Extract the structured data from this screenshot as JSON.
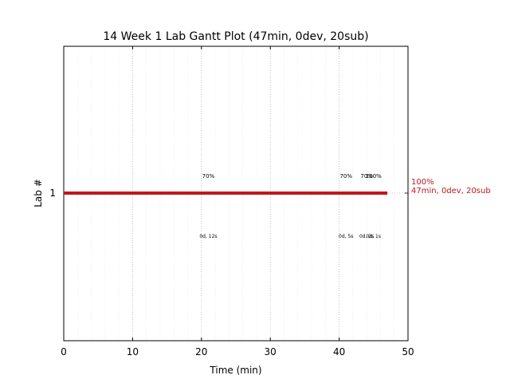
{
  "chart_data": {
    "type": "gantt",
    "title": "14 Week 1 Lab Gantt Plot (47min, 0dev, 20sub)",
    "xlabel": "Time (min)",
    "ylabel": "Lab #",
    "xlim": [
      0,
      50
    ],
    "x_ticks": [
      0,
      10,
      20,
      30,
      40,
      50
    ],
    "y_ticks": [
      1
    ],
    "grid": {
      "major_x": true,
      "minor_x": true
    },
    "bar_color": "#c0171c",
    "series": [
      {
        "lab": 1,
        "start": 0,
        "end": 47,
        "end_label": [
          "100%",
          "47min, 0dev, 20sub"
        ]
      }
    ],
    "annotations": [
      {
        "x": 21,
        "pct": "70%",
        "note": "0d, 12s"
      },
      {
        "x": 41,
        "pct": "70%",
        "note": "0d, 5s"
      },
      {
        "x": 44,
        "pct": "70%",
        "note": "0d, 2s"
      },
      {
        "x": 45,
        "pct": "100%",
        "note": "0d, 1s"
      }
    ]
  }
}
